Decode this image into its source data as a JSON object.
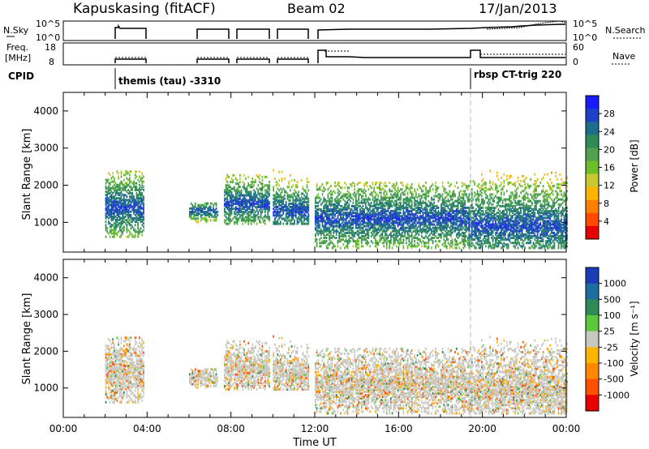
{
  "header": {
    "station": "Kapuskasing (fitACF)",
    "beam": "Beam 02",
    "date": "17/Jan/2013"
  },
  "aux_panels": {
    "nsky_label": "N.Sky",
    "nsky_ticks": [
      "10^5",
      "10^0"
    ],
    "nsearch_label": "N.Search",
    "nsearch_ticks": [
      "10^5",
      "10^0"
    ],
    "freq_label_line1": "Freq.",
    "freq_label_line2": "[MHz]",
    "freq_ticks": [
      "18",
      "8"
    ],
    "nave_label": "Nave",
    "nave_ticks": [
      "60",
      "0"
    ],
    "cpid_label": "CPID",
    "cpid_1": "themis (tau) -3310",
    "cpid_2": "rbsp CT-trig 220"
  },
  "colors": {
    "power_scale": [
      "#1a1aff",
      "#1e40c8",
      "#1d6e8a",
      "#2e8b57",
      "#4fa04f",
      "#6cbf2a",
      "#c8c832",
      "#ffb400",
      "#ff8000",
      "#ff4a00",
      "#e60000"
    ],
    "velocity_scale": [
      "#1a3cb4",
      "#1d6ea0",
      "#2e8b57",
      "#5cc83c",
      "#c8c8c0",
      "#ffb400",
      "#ff8a00",
      "#ff5000",
      "#e60000"
    ],
    "ground_scatter": "#c8c8c0"
  },
  "chart_data": [
    {
      "type": "heatmap",
      "name": "power",
      "ylabel": "Slant Range [km]",
      "ylim": [
        200,
        4500
      ],
      "yticks": [
        "4000",
        "3000",
        "2000",
        "1000"
      ],
      "xlim_hours": [
        0,
        24
      ],
      "colorbar_label": "Power [dB]",
      "colorbar_ticks": [
        "28",
        "24",
        "20",
        "16",
        "12",
        "8",
        "4"
      ],
      "cpid_change_time": "19:20",
      "gaps": [
        [
          "00:00",
          "02:00"
        ],
        [
          "03:50",
          "06:00"
        ]
      ],
      "blocks": [
        {
          "t": [
            "02:00",
            "03:50"
          ],
          "range_km": [
            600,
            2400
          ],
          "peak_km": 1400
        },
        {
          "t": [
            "06:00",
            "07:20"
          ],
          "range_km": [
            1000,
            1500
          ],
          "peak_km": 1300
        },
        {
          "t": [
            "07:40",
            "09:50"
          ],
          "range_km": [
            950,
            2300
          ],
          "peak_km": 1500
        },
        {
          "t": [
            "10:00",
            "11:40"
          ],
          "range_km": [
            950,
            2400
          ],
          "peak_km": 1300
        },
        {
          "t": [
            "12:00",
            "19:20"
          ],
          "range_km": [
            300,
            2100
          ],
          "peak_km": 1100
        },
        {
          "t": [
            "19:20",
            "24:00"
          ],
          "range_km": [
            300,
            2400
          ],
          "peak_km": 900
        }
      ]
    },
    {
      "type": "heatmap",
      "name": "velocity",
      "ylabel": "Slant Range [km]",
      "ylim": [
        200,
        4500
      ],
      "yticks": [
        "4000",
        "3000",
        "2000",
        "1000"
      ],
      "xlim_hours": [
        0,
        24
      ],
      "colorbar_label": "Velocity [m s⁻¹]",
      "colorbar_ticks": [
        "1000",
        "500",
        "100",
        "25",
        "-25",
        "-100",
        "-500",
        "-1000"
      ],
      "xlabel": "Time UT",
      "xticks": [
        "00:00",
        "04:00",
        "08:00",
        "12:00",
        "16:00",
        "20:00",
        "00:00"
      ]
    }
  ]
}
